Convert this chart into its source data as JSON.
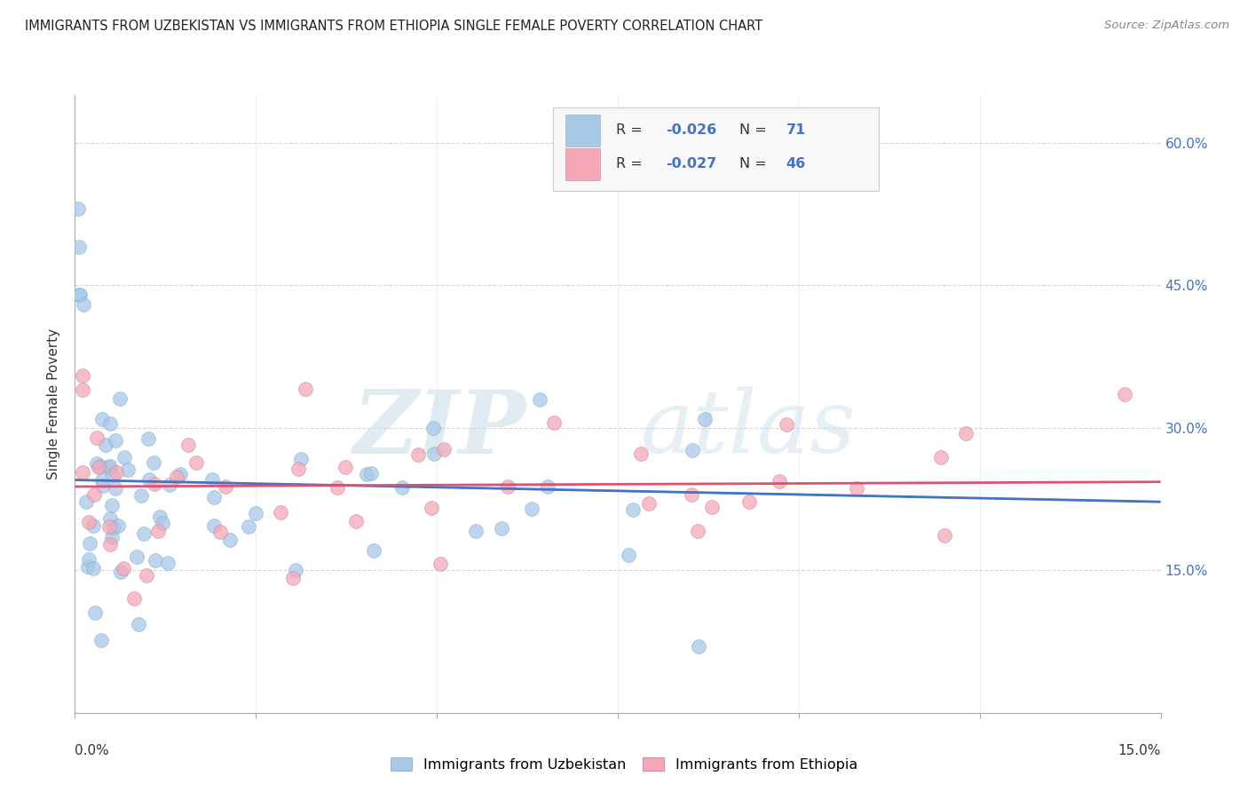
{
  "title": "IMMIGRANTS FROM UZBEKISTAN VS IMMIGRANTS FROM ETHIOPIA SINGLE FEMALE POVERTY CORRELATION CHART",
  "source": "Source: ZipAtlas.com",
  "ylabel": "Single Female Poverty",
  "legend_label1": "Immigrants from Uzbekistan",
  "legend_label2": "Immigrants from Ethiopia",
  "color1": "#a8c8e8",
  "color2": "#f4a8b8",
  "trend_color1": "#4472c4",
  "trend_color2": "#e05070",
  "right_axis_color": "#4472c4",
  "watermark_color": "#d8e8f0",
  "xlim": [
    0.0,
    0.15
  ],
  "ylim": [
    0.0,
    0.65
  ],
  "yticks": [
    0.15,
    0.3,
    0.45,
    0.6
  ],
  "ytick_labels": [
    "15.0%",
    "30.0%",
    "45.0%",
    "60.0%"
  ],
  "background_color": "#ffffff",
  "grid_color": "#cccccc",
  "axis_color": "#aaaaaa"
}
